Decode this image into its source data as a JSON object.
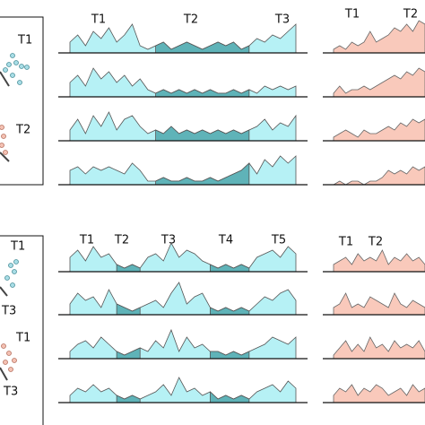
{
  "panels": [
    {
      "scatter_labels": [
        "T1",
        "T2"
      ],
      "track_labels": [
        "T1",
        "T2",
        "T3"
      ],
      "pink_labels": [
        "T1",
        "T2"
      ],
      "cyan_highlight": [
        [
          11,
          23
        ]
      ],
      "cyan_tracks": [
        [
          3,
          5,
          2,
          6,
          4,
          7,
          3,
          5,
          8,
          2,
          1,
          2,
          3,
          1,
          2,
          3,
          2,
          1,
          2,
          3,
          2,
          3,
          1,
          2,
          4,
          3,
          5,
          4,
          6,
          8
        ],
        [
          4,
          6,
          3,
          8,
          5,
          7,
          4,
          6,
          3,
          5,
          2,
          1,
          2,
          1,
          2,
          1,
          2,
          1,
          2,
          1,
          1,
          2,
          1,
          2,
          1,
          3,
          2,
          3,
          2,
          3
        ],
        [
          3,
          6,
          2,
          7,
          4,
          8,
          3,
          6,
          7,
          4,
          2,
          3,
          2,
          4,
          2,
          3,
          2,
          3,
          2,
          3,
          2,
          3,
          2,
          3,
          4,
          6,
          3,
          5,
          4,
          7
        ],
        [
          4,
          5,
          3,
          5,
          4,
          5,
          4,
          3,
          6,
          4,
          1,
          1,
          2,
          1,
          1,
          2,
          1,
          1,
          2,
          1,
          2,
          3,
          4,
          6,
          3,
          7,
          5,
          8,
          6,
          8
        ]
      ],
      "pink_tracks": [
        [
          1,
          2,
          1,
          3,
          2,
          3,
          6,
          3,
          4,
          5,
          7,
          6,
          8,
          6,
          9,
          8
        ],
        [
          1,
          3,
          1,
          2,
          2,
          3,
          2,
          3,
          4,
          5,
          6,
          5,
          7,
          6,
          8,
          7
        ],
        [
          1,
          2,
          3,
          2,
          1,
          3,
          2,
          2,
          3,
          4,
          3,
          5,
          4,
          6,
          5,
          6
        ],
        [
          0,
          1,
          0,
          1,
          1,
          0,
          1,
          1,
          2,
          4,
          3,
          4,
          3,
          5,
          4,
          5
        ]
      ]
    },
    {
      "scatter_labels": [
        "T1",
        "T3",
        "T1",
        "T3"
      ],
      "track_labels": [
        "T1",
        "T2",
        "T3",
        "T4",
        "T5"
      ],
      "pink_labels": [
        "T1",
        "T2"
      ],
      "cyan_highlight": [
        [
          6,
          9
        ],
        [
          18,
          23
        ]
      ],
      "cyan_tracks": [
        [
          4,
          6,
          3,
          7,
          4,
          5,
          2,
          1,
          2,
          1,
          4,
          5,
          3,
          8,
          4,
          6,
          5,
          3,
          2,
          1,
          2,
          1,
          2,
          1,
          4,
          5,
          6,
          4,
          7,
          5
        ],
        [
          3,
          6,
          4,
          5,
          2,
          7,
          3,
          2,
          1,
          2,
          3,
          4,
          2,
          6,
          9,
          3,
          5,
          6,
          2,
          1,
          2,
          1,
          2,
          1,
          3,
          5,
          4,
          6,
          7,
          4
        ],
        [
          2,
          4,
          5,
          3,
          6,
          4,
          2,
          1,
          2,
          3,
          2,
          5,
          3,
          8,
          2,
          6,
          3,
          4,
          2,
          2,
          1,
          2,
          1,
          2,
          3,
          4,
          6,
          5,
          4,
          6
        ],
        [
          2,
          4,
          3,
          5,
          3,
          4,
          2,
          1,
          2,
          1,
          2,
          3,
          5,
          2,
          7,
          3,
          4,
          2,
          3,
          1,
          2,
          1,
          2,
          1,
          3,
          4,
          5,
          3,
          6,
          4
        ]
      ],
      "pink_tracks": [
        [
          2,
          3,
          4,
          2,
          5,
          3,
          4,
          3,
          6,
          2,
          4,
          3,
          5,
          3,
          4,
          2
        ],
        [
          2,
          3,
          6,
          2,
          3,
          2,
          5,
          4,
          3,
          2,
          6,
          3,
          2,
          4,
          3,
          2
        ],
        [
          1,
          3,
          5,
          2,
          4,
          2,
          6,
          3,
          4,
          2,
          5,
          3,
          4,
          3,
          5,
          2
        ],
        [
          2,
          4,
          3,
          5,
          2,
          4,
          3,
          5,
          4,
          2,
          3,
          4,
          2,
          5,
          3,
          4
        ]
      ]
    }
  ]
}
